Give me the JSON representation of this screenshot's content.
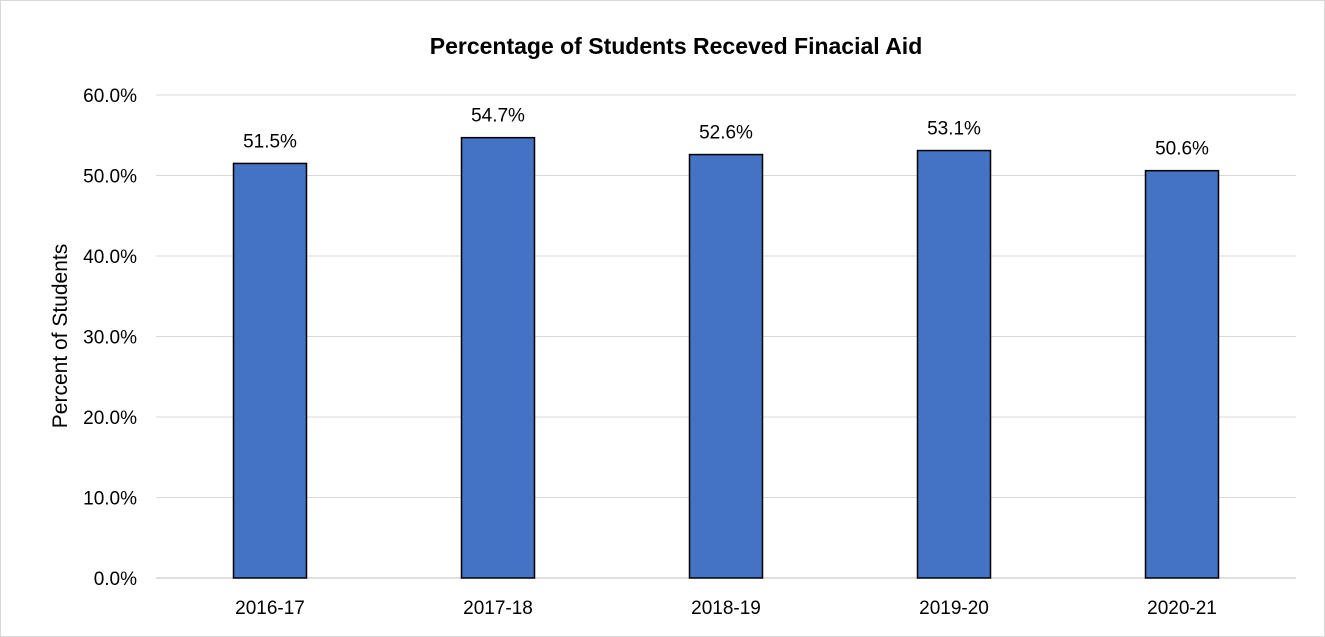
{
  "chart_data": {
    "type": "bar",
    "title": "Percentage of Students Receved Finacial Aid",
    "xlabel": "",
    "ylabel": "Percent of Students",
    "categories": [
      "2016-17",
      "2017-18",
      "2018-19",
      "2019-20",
      "2020-21"
    ],
    "values": [
      51.5,
      54.7,
      52.6,
      53.1,
      50.6
    ],
    "data_labels": [
      "51.5%",
      "54.7%",
      "52.6%",
      "53.1%",
      "50.6%"
    ],
    "ylim": [
      0,
      60
    ],
    "y_ticks": [
      0,
      10,
      20,
      30,
      40,
      50,
      60
    ],
    "y_tick_labels": [
      "0.0%",
      "10.0%",
      "20.0%",
      "30.0%",
      "40.0%",
      "50.0%",
      "60.0%"
    ],
    "grid": true,
    "legend": "none",
    "colors": {
      "bar_fill": "#4472C4",
      "bar_stroke": "#000000",
      "gridline": "#d9d9d9",
      "axis_line": "#bfbfbf"
    }
  }
}
